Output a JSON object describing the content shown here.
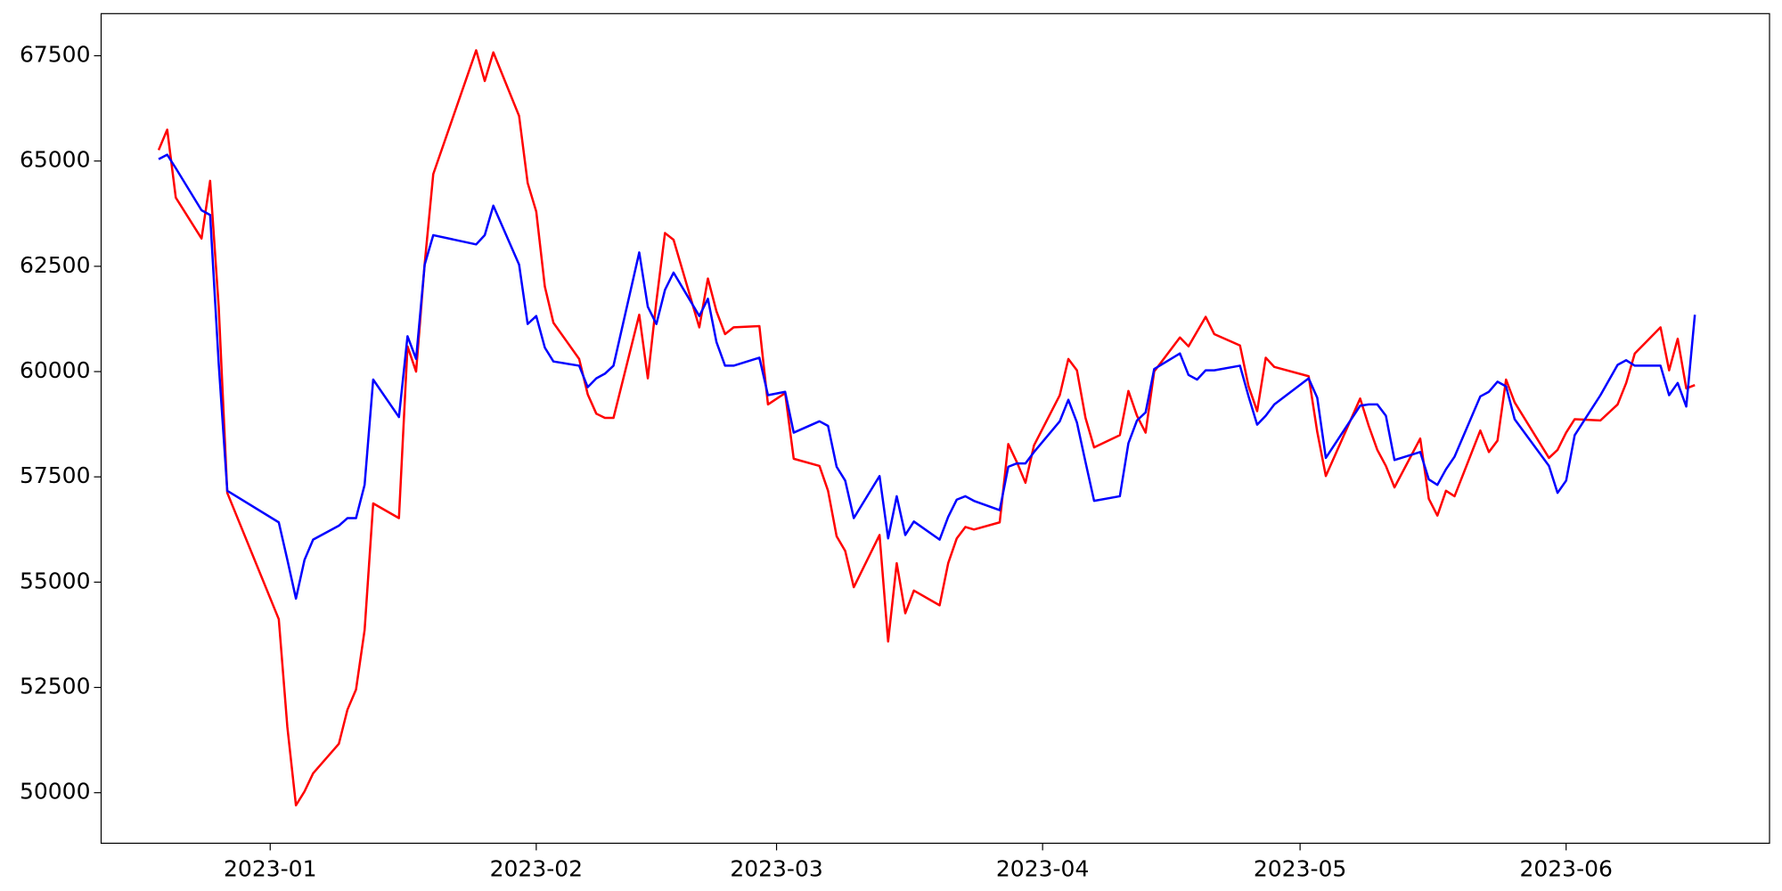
{
  "chart_data": {
    "type": "line",
    "x": [
      19345,
      19346,
      19347,
      19350,
      19351,
      19352,
      19353,
      19359,
      19360,
      19361,
      19362,
      19363,
      19366,
      19367,
      19368,
      19369,
      19370,
      19373,
      19374,
      19375,
      19376,
      19377,
      19382,
      19383,
      19384,
      19387,
      19388,
      19389,
      19390,
      19391,
      19394,
      19395,
      19396,
      19397,
      19398,
      19401,
      19402,
      19403,
      19404,
      19405,
      19408,
      19409,
      19410,
      19411,
      19412,
      19415,
      19416,
      19418,
      19419,
      19422,
      19423,
      19424,
      19425,
      19426,
      19429,
      19430,
      19431,
      19432,
      19433,
      19436,
      19437,
      19438,
      19439,
      19440,
      19443,
      19444,
      19445,
      19446,
      19447,
      19450,
      19451,
      19452,
      19453,
      19454,
      19457,
      19458,
      19459,
      19460,
      19461,
      19464,
      19465,
      19466,
      19467,
      19468,
      19471,
      19472,
      19473,
      19474,
      19475,
      19479,
      19480,
      19481,
      19485,
      19486,
      19487,
      19488,
      19489,
      19492,
      19493,
      19494,
      19495,
      19496,
      19499,
      19500,
      19501,
      19502,
      19503,
      19507,
      19508,
      19509,
      19510,
      19513,
      19515,
      19516,
      19517,
      19520,
      19521,
      19522,
      19523,
      19524
    ],
    "series": [
      {
        "color": "#ff0000",
        "values": [
          65260,
          65745,
          64130,
          63160,
          64530,
          61540,
          57120,
          54120,
          51560,
          49700,
          50030,
          50460,
          51160,
          51970,
          52450,
          53860,
          56870,
          56520,
          60600,
          60000,
          62560,
          64690,
          67630,
          66900,
          67580,
          66070,
          64480,
          63800,
          62020,
          61160,
          60300,
          59460,
          59000,
          58900,
          58900,
          61350,
          59840,
          61670,
          63290,
          63130,
          61050,
          62210,
          61430,
          60890,
          61050,
          61080,
          59220,
          59490,
          57930,
          57760,
          57170,
          56090,
          55740,
          54880,
          56120,
          53590,
          55450,
          54260,
          54800,
          54450,
          55450,
          56040,
          56310,
          56250,
          56420,
          58280,
          57850,
          57360,
          58250,
          59440,
          60300,
          60030,
          58900,
          58200,
          58490,
          59540,
          58950,
          58550,
          60000,
          60810,
          60600,
          60950,
          61300,
          60890,
          60620,
          59650,
          59060,
          60330,
          60110,
          59890,
          58570,
          57520,
          59360,
          58710,
          58140,
          57760,
          57250,
          58410,
          56980,
          56580,
          57170,
          57040,
          58600,
          58090,
          58360,
          59810,
          59270,
          57950,
          58140,
          58550,
          58870,
          58840,
          59220,
          59730,
          60430,
          61050,
          60030,
          60780,
          59600,
          59680
        ]
      },
      {
        "color": "#0000ff",
        "values": [
          65045,
          65150,
          64830,
          63830,
          63720,
          60190,
          57170,
          56420,
          55530,
          54610,
          55530,
          56010,
          56340,
          56520,
          56520,
          57310,
          59810,
          58920,
          60840,
          60300,
          62540,
          63240,
          63020,
          63240,
          63940,
          62540,
          61130,
          61320,
          60570,
          60240,
          60140,
          59630,
          59840,
          59950,
          60140,
          62830,
          61540,
          61130,
          61940,
          62350,
          61320,
          61730,
          60700,
          60140,
          60140,
          60330,
          59440,
          59520,
          58550,
          58820,
          58710,
          57740,
          57410,
          56520,
          57520,
          56040,
          57040,
          56120,
          56440,
          56010,
          56550,
          56960,
          57040,
          56930,
          56710,
          57740,
          57820,
          57820,
          58090,
          58820,
          59330,
          58790,
          57850,
          56930,
          57040,
          58300,
          58840,
          59030,
          60060,
          60430,
          59920,
          59810,
          60030,
          60030,
          60140,
          59410,
          58740,
          58950,
          59220,
          59840,
          59380,
          57950,
          59190,
          59220,
          59220,
          58950,
          57900,
          58090,
          57440,
          57310,
          57680,
          57980,
          59410,
          59520,
          59760,
          59650,
          58870,
          57760,
          57120,
          57410,
          58490,
          59440,
          60160,
          60270,
          60140,
          60140,
          59440,
          59730,
          59170,
          61350
        ]
      }
    ],
    "xlim": [
      19338.3,
      19532.7
    ],
    "xticks": [
      {
        "value": 19358,
        "label": "2023-01"
      },
      {
        "value": 19389,
        "label": "2023-02"
      },
      {
        "value": 19417,
        "label": "2023-03"
      },
      {
        "value": 19448,
        "label": "2023-04"
      },
      {
        "value": 19478,
        "label": "2023-05"
      },
      {
        "value": 19509,
        "label": "2023-06"
      }
    ],
    "ylim": [
      48800,
      68500
    ],
    "yticks": [
      50000,
      52500,
      55000,
      57500,
      60000,
      62500,
      65000,
      67500
    ],
    "grid": false
  }
}
